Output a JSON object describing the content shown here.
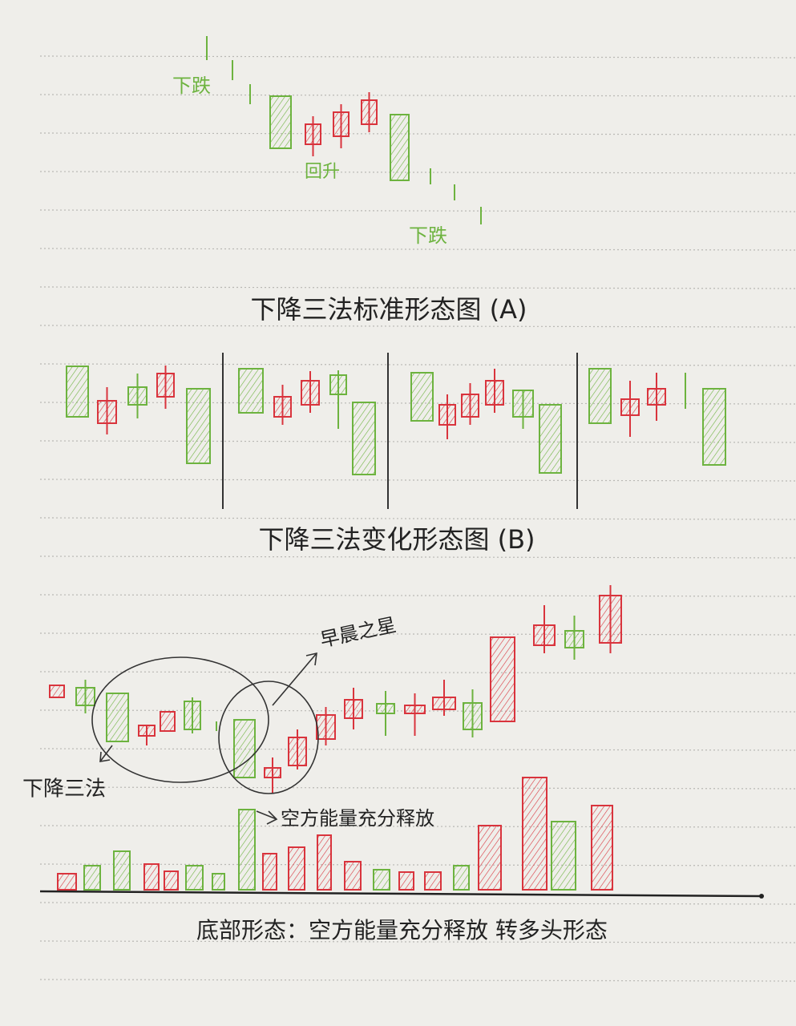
{
  "labels": {
    "fall_top": "下跌",
    "rebound": "回升",
    "fall_bottom": "下跌",
    "morning_star": "早晨之星",
    "three_methods": "下降三法",
    "energy_release": "空方能量充分释放"
  },
  "titles": {
    "standard": "下降三法标准形态图 (A)",
    "variation": "下降三法变化形态图 (B)",
    "bottom": "底部形态：空方能量充分释放 转多头形态"
  }
}
